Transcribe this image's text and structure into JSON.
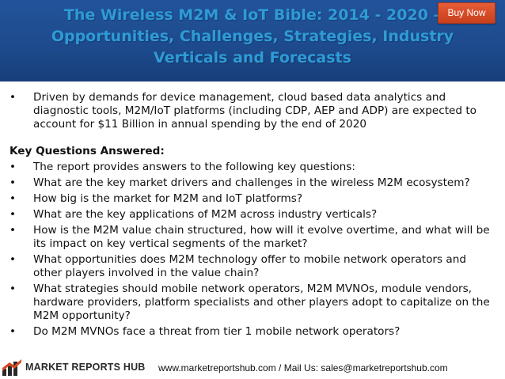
{
  "header": {
    "title_lines": [
      "The Wireless M2M & IoT Bible: 2014 - 2020 –",
      "Opportunities, Challenges, Strategies, Industry",
      "Verticals and Forecasts"
    ],
    "buy_label": "Buy Now"
  },
  "intro_items": [
    "Driven by demands for device management, cloud based data analytics and diagnostic tools, M2M/IoT platforms (including CDP, AEP and ADP) are expected to account for $11 Billion in annual spending by the end of 2020"
  ],
  "section_heading": "Key Questions Answered:",
  "question_items": [
    "The report provides answers to the following key questions:",
    "What are the key market drivers and challenges in the wireless M2M ecosystem?",
    "How big is the market for M2M and IoT platforms?",
    "What are the key applications of M2M across industry verticals?",
    "How is the M2M value chain structured, how will it evolve overtime, and what will be its impact on key vertical segments of the market?",
    "What opportunities does M2M technology offer to mobile network operators and other players involved in the value chain?",
    "What strategies should mobile network operators, M2M MVNOs, module vendors, hardware providers, platform specialists and other players adopt to capitalize on the M2M opportunity?",
    "Do M2M MVNOs face a threat from tier 1 mobile network operators?"
  ],
  "bullet_glyph": "•",
  "footer": {
    "logo_text": "MARKET REPORTS HUB",
    "contact": "www.marketreportshub.com / Mail Us: sales@marketreportshub.com"
  },
  "colors": {
    "header_bg": "#1d4a8c",
    "title_text": "#2e9bd6",
    "buy_button": "#d44a24"
  }
}
